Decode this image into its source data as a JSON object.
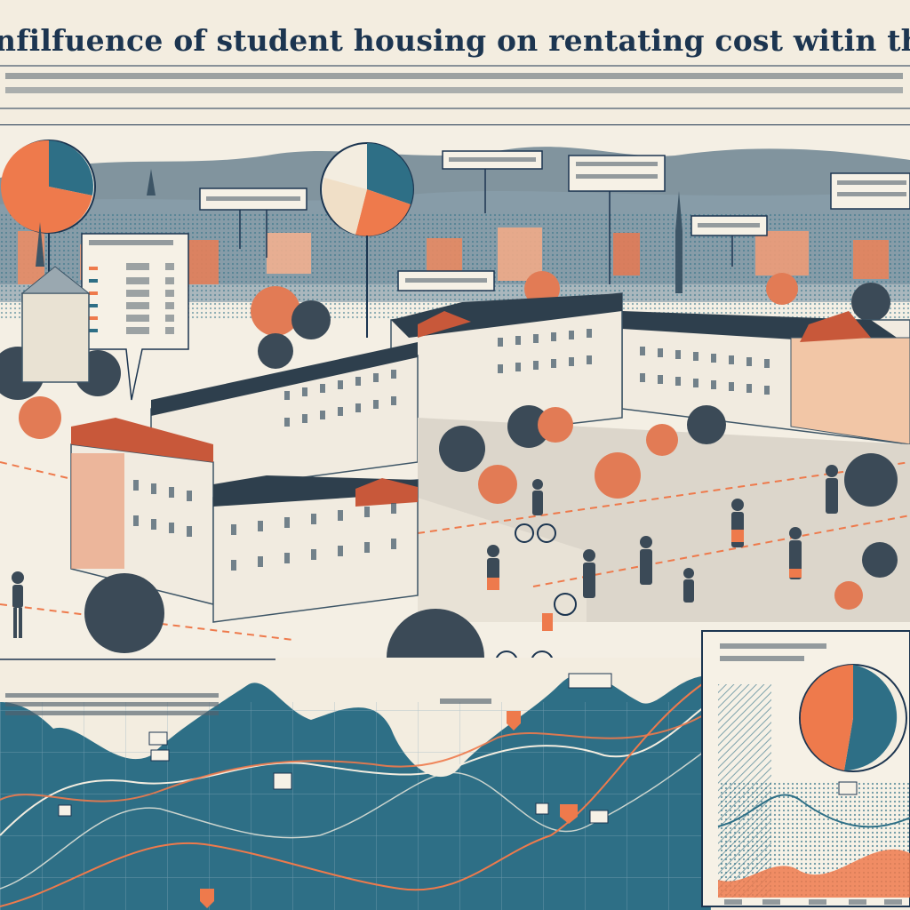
{
  "title": "nfilfuence of student housing on rentating cost witin the Stütgart Wes",
  "colors": {
    "paper": "#f3ede0",
    "navy": "#1c3550",
    "teal": "#2e6f86",
    "orange": "#ee7a4c",
    "slate": "#3d5566",
    "wall": "#f1ebe0",
    "roof": "#c8583a",
    "tree": "#3b4a57"
  },
  "illustration": {
    "subject": "student-housing-cityscape",
    "pie_callouts": 3,
    "chart": "line-area",
    "people": "students-walking-cycling"
  }
}
